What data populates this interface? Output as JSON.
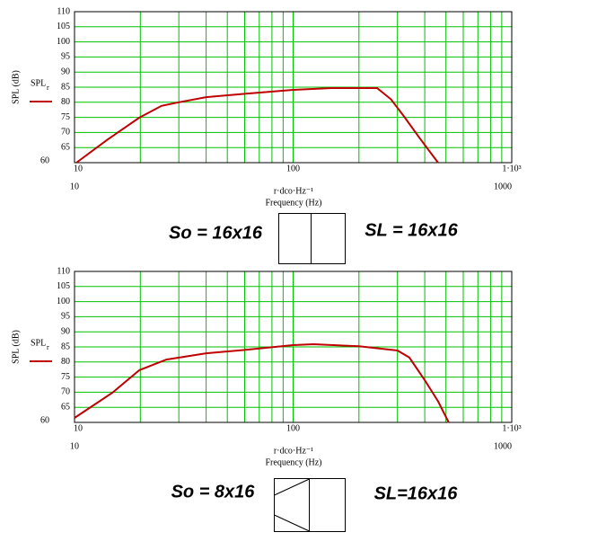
{
  "chart_data": [
    {
      "type": "line",
      "x_log": true,
      "grid": true,
      "grid_color": "#00c000",
      "ylabel": "SPL (dB)",
      "xlabel": "r·dco·Hz⁻¹",
      "xlabel2": "Frequency (Hz)",
      "xlim": [
        10,
        1000
      ],
      "xticks": [
        10,
        100,
        {
          "value": 1000,
          "label": "1·10³"
        }
      ],
      "ylim": [
        60,
        110
      ],
      "yticks": [
        60,
        65,
        70,
        75,
        80,
        85,
        90,
        95,
        100,
        105,
        110
      ],
      "series": [
        {
          "name": "SPL",
          "subscript": "r",
          "color": "#c00000",
          "x": [
            10.2,
            14.2,
            19.8,
            25,
            30,
            40,
            60,
            100,
            150,
            242,
            280,
            320,
            380,
            460
          ],
          "values": [
            60,
            67.7,
            74.9,
            78.8,
            80,
            81.7,
            82.8,
            84.1,
            84.7,
            84.7,
            81,
            75.5,
            68,
            60
          ]
        }
      ],
      "annotations": [
        "So = 16x16",
        "SL = 16x16"
      ]
    },
    {
      "type": "line",
      "x_log": true,
      "grid": true,
      "grid_color": "#00c000",
      "ylabel": "SPL (dB)",
      "xlabel": "r·dco·Hz⁻¹",
      "xlabel2": "Frequency (Hz)",
      "xlim": [
        10,
        1000
      ],
      "xticks": [
        10,
        100,
        {
          "value": 1000,
          "label": "1·10³"
        }
      ],
      "ylim": [
        60,
        110
      ],
      "yticks": [
        60,
        65,
        70,
        75,
        80,
        85,
        90,
        95,
        100,
        105,
        110
      ],
      "series": [
        {
          "name": "SPL",
          "subscript": "r",
          "color": "#c00000",
          "x": [
            10,
            15,
            19.8,
            26.3,
            40,
            60,
            100,
            124,
            200,
            300,
            340,
            400,
            460,
            515
          ],
          "values": [
            61.5,
            70,
            77.3,
            80.8,
            82.9,
            84,
            85.6,
            85.9,
            85.2,
            83.8,
            81.5,
            74,
            67,
            60
          ]
        }
      ],
      "annotations": [
        "So = 8x16",
        "SL=16x16"
      ]
    }
  ]
}
